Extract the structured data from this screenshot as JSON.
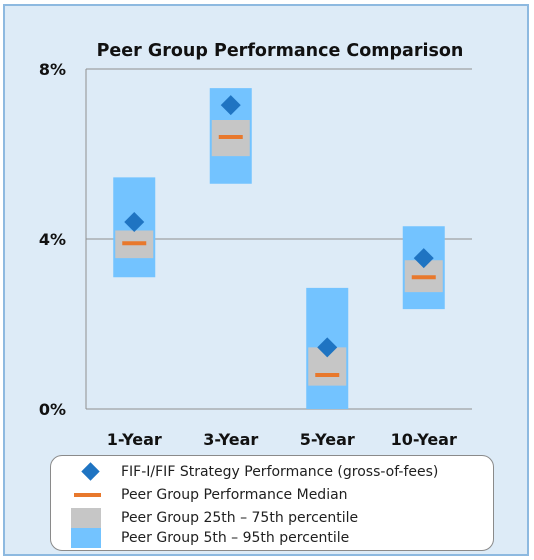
{
  "chart_data": {
    "type": "range-bar",
    "title": "Peer Group Performance Comparison",
    "categories": [
      "1-Year",
      "3-Year",
      "5-Year",
      "10-Year"
    ],
    "y_ticks": [
      "8%",
      "4%",
      "0%"
    ],
    "ylim": [
      0,
      8
    ],
    "grid": true,
    "series": [
      {
        "name": "FIF-I/FIF Strategy Performance (gross-of-fees)",
        "values": [
          4.4,
          7.15,
          1.45,
          3.55
        ]
      },
      {
        "name": "Peer Group Performance Median",
        "values": [
          3.9,
          6.4,
          0.8,
          3.1
        ]
      },
      {
        "name": "Peer Group 25th – 75th percentile",
        "low": [
          3.55,
          5.95,
          0.55,
          2.75
        ],
        "high": [
          4.2,
          6.8,
          1.45,
          3.5
        ]
      },
      {
        "name": "Peer Group 5th – 95th percentile",
        "low": [
          3.1,
          5.3,
          0.0,
          2.35
        ],
        "high": [
          5.45,
          7.55,
          2.85,
          4.3
        ]
      }
    ],
    "legend_position": "bottom",
    "colors": {
      "performance": "#1f74c2",
      "median": "#e8782c",
      "iqr": "#c6c6c6",
      "range": "#73c3ff",
      "background": "#ddebf7"
    }
  }
}
